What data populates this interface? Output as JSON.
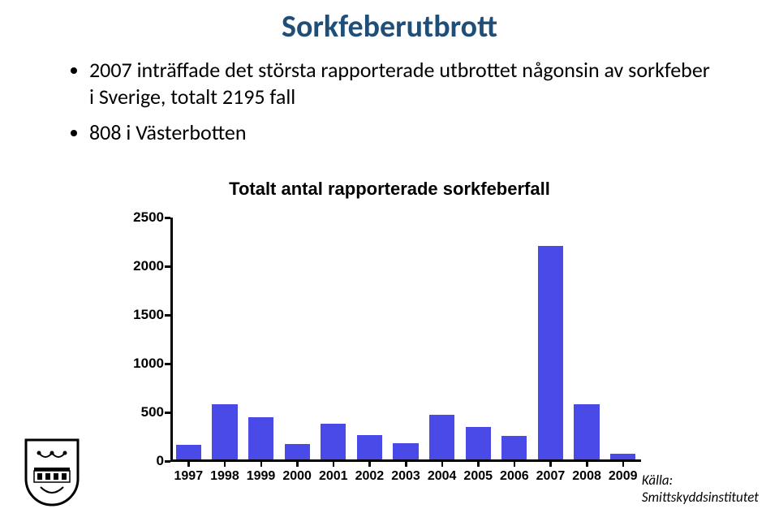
{
  "title": "Sorkfeberutbrott",
  "title_color": "#1f4e79",
  "bullets": [
    "2007 inträffade det största rapporterade utbrottet någonsin av sorkfeber i Sverige, totalt 2195 fall",
    "808 i Västerbotten"
  ],
  "chart": {
    "type": "bar",
    "title": "Totalt antal rapporterade sorkfeberfall",
    "title_fontsize": 22,
    "categories": [
      "1997",
      "1998",
      "1999",
      "2000",
      "2001",
      "2002",
      "2003",
      "2004",
      "2005",
      "2006",
      "2007",
      "2008",
      "2009"
    ],
    "values": [
      150,
      570,
      430,
      160,
      370,
      250,
      170,
      460,
      330,
      240,
      2195,
      570,
      60
    ],
    "bar_color": "#4a4ae8",
    "ylim": [
      0,
      2500
    ],
    "ytick_step": 500,
    "yticks": [
      0,
      500,
      1000,
      1500,
      2000,
      2500
    ],
    "background_color": "#ffffff",
    "axis_color": "#000000",
    "axis_width": 2.5,
    "label_fontsize": 17,
    "label_fontweight": "bold",
    "bar_width_ratio": 0.7
  },
  "source_label": "Källa:",
  "source_value": "Smittskyddsinstitutet"
}
